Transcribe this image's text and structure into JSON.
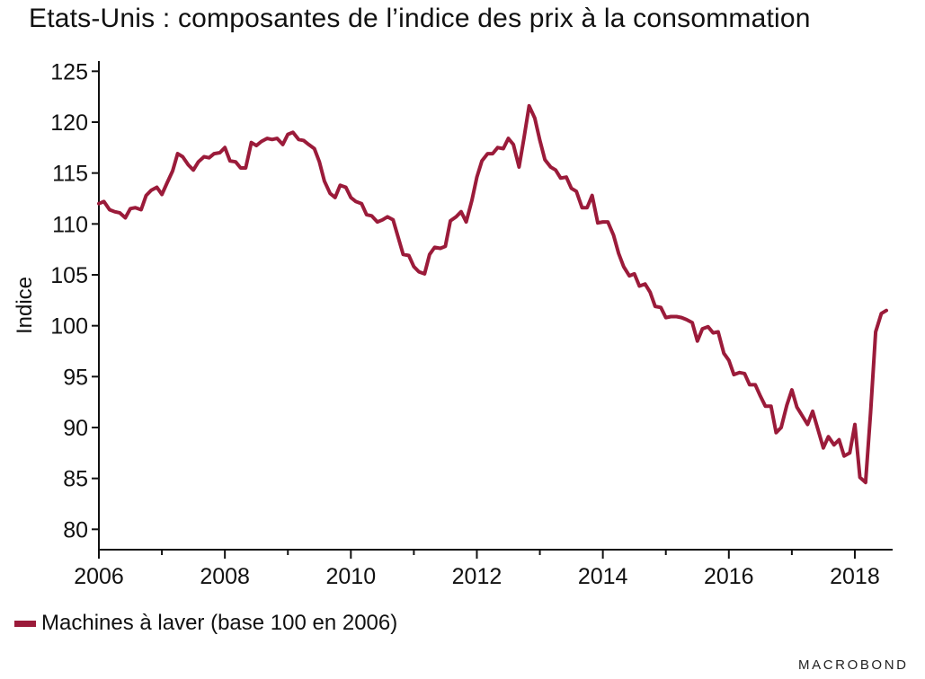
{
  "watermark": "MACROBOND",
  "chart_data": {
    "type": "line",
    "title": "Etats-Unis : composantes de l’indice des prix à la consommation",
    "ylabel": "Indice",
    "xlabel": "",
    "xlim": [
      2006,
      2018.6
    ],
    "ylim": [
      78,
      126
    ],
    "x_ticks": [
      2006,
      2008,
      2010,
      2012,
      2014,
      2016,
      2018
    ],
    "y_ticks": [
      80,
      85,
      90,
      95,
      100,
      105,
      110,
      115,
      120,
      125
    ],
    "grid": false,
    "legend_position": "bottom-left",
    "series": [
      {
        "name": "Machines à laver (base 100 en 2006)",
        "color": "#9B1B3A",
        "x": [
          2006.0,
          2006.08,
          2006.17,
          2006.25,
          2006.33,
          2006.42,
          2006.5,
          2006.58,
          2006.67,
          2006.75,
          2006.83,
          2006.92,
          2007.0,
          2007.08,
          2007.17,
          2007.25,
          2007.33,
          2007.42,
          2007.5,
          2007.58,
          2007.67,
          2007.75,
          2007.83,
          2007.92,
          2008.0,
          2008.08,
          2008.17,
          2008.25,
          2008.33,
          2008.42,
          2008.5,
          2008.58,
          2008.67,
          2008.75,
          2008.83,
          2008.92,
          2009.0,
          2009.08,
          2009.17,
          2009.25,
          2009.33,
          2009.42,
          2009.5,
          2009.58,
          2009.67,
          2009.75,
          2009.83,
          2009.92,
          2010.0,
          2010.08,
          2010.17,
          2010.25,
          2010.33,
          2010.42,
          2010.5,
          2010.58,
          2010.67,
          2010.75,
          2010.83,
          2010.92,
          2011.0,
          2011.08,
          2011.17,
          2011.25,
          2011.33,
          2011.42,
          2011.5,
          2011.58,
          2011.67,
          2011.75,
          2011.83,
          2011.92,
          2012.0,
          2012.08,
          2012.17,
          2012.25,
          2012.33,
          2012.42,
          2012.5,
          2012.58,
          2012.67,
          2012.75,
          2012.83,
          2012.92,
          2013.0,
          2013.08,
          2013.17,
          2013.25,
          2013.33,
          2013.42,
          2013.5,
          2013.58,
          2013.67,
          2013.75,
          2013.83,
          2013.92,
          2014.0,
          2014.08,
          2014.17,
          2014.25,
          2014.33,
          2014.42,
          2014.5,
          2014.58,
          2014.67,
          2014.75,
          2014.83,
          2014.92,
          2015.0,
          2015.08,
          2015.17,
          2015.25,
          2015.33,
          2015.42,
          2015.5,
          2015.58,
          2015.67,
          2015.75,
          2015.83,
          2015.92,
          2016.0,
          2016.08,
          2016.17,
          2016.25,
          2016.33,
          2016.42,
          2016.5,
          2016.58,
          2016.67,
          2016.75,
          2016.83,
          2016.92,
          2017.0,
          2017.08,
          2017.17,
          2017.25,
          2017.33,
          2017.42,
          2017.5,
          2017.58,
          2017.67,
          2017.75,
          2017.83,
          2017.92,
          2018.0,
          2018.08,
          2018.17,
          2018.25,
          2018.33,
          2018.42,
          2018.5
        ],
        "values": [
          112.0,
          112.2,
          111.4,
          111.2,
          111.1,
          110.6,
          111.5,
          111.6,
          111.4,
          112.8,
          113.3,
          113.6,
          112.9,
          114.0,
          115.2,
          116.9,
          116.6,
          115.8,
          115.3,
          116.1,
          116.6,
          116.5,
          116.9,
          117.0,
          117.5,
          116.2,
          116.1,
          115.5,
          115.5,
          118.0,
          117.7,
          118.1,
          118.4,
          118.3,
          118.4,
          117.8,
          118.8,
          119.0,
          118.3,
          118.2,
          117.8,
          117.4,
          116.1,
          114.2,
          113.0,
          112.6,
          113.8,
          113.6,
          112.6,
          112.2,
          112.0,
          110.9,
          110.8,
          110.2,
          110.4,
          110.7,
          110.4,
          108.7,
          107.0,
          106.9,
          105.8,
          105.3,
          105.1,
          107.0,
          107.7,
          107.6,
          107.8,
          110.3,
          110.7,
          111.2,
          110.2,
          112.3,
          114.6,
          116.2,
          116.9,
          116.9,
          117.5,
          117.4,
          118.4,
          117.8,
          115.6,
          118.5,
          121.6,
          120.4,
          118.2,
          116.3,
          115.6,
          115.3,
          114.5,
          114.6,
          113.5,
          113.2,
          111.6,
          111.6,
          112.8,
          110.1,
          110.2,
          110.2,
          108.9,
          107.1,
          105.8,
          104.9,
          105.1,
          103.9,
          104.1,
          103.3,
          101.9,
          101.8,
          100.8,
          100.9,
          100.9,
          100.8,
          100.6,
          100.3,
          98.5,
          99.7,
          99.9,
          99.3,
          99.4,
          97.3,
          96.6,
          95.2,
          95.4,
          95.3,
          94.2,
          94.2,
          93.1,
          92.1,
          92.1,
          89.5,
          90.0,
          92.2,
          93.7,
          92.0,
          91.1,
          90.3,
          91.6,
          89.7,
          88.0,
          89.1,
          88.3,
          88.8,
          87.2,
          87.5,
          90.3,
          85.1,
          84.6,
          91.5,
          99.4,
          101.2,
          101.5
        ]
      }
    ]
  }
}
